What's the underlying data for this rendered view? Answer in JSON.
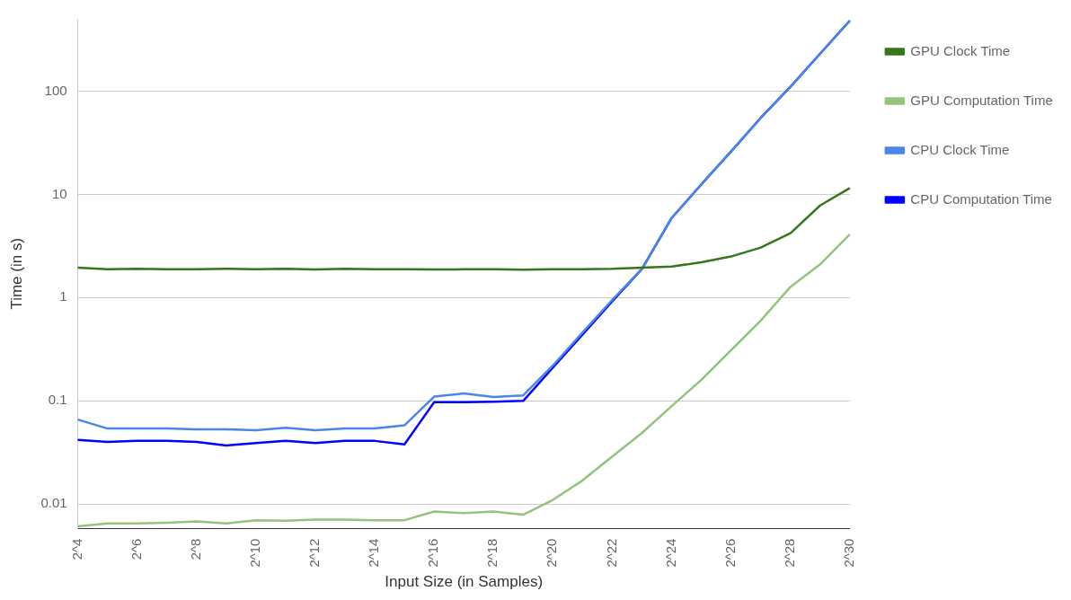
{
  "chart_data": {
    "type": "line",
    "xlabel": "Input Size (in Samples)",
    "ylabel": "Time (in s)",
    "categories": [
      "2^4",
      null,
      "2^6",
      null,
      "2^8",
      null,
      "2^10",
      null,
      "2^12",
      null,
      "2^14",
      null,
      "2^16",
      null,
      "2^18",
      null,
      "2^20",
      null,
      "2^22",
      null,
      "2^24",
      null,
      "2^26",
      null,
      "2^28",
      null,
      "2^30"
    ],
    "series": [
      {
        "name": "GPU Clock Time",
        "color": "#38761d",
        "values": [
          1.95,
          1.88,
          1.9,
          1.88,
          1.88,
          1.9,
          1.88,
          1.9,
          1.87,
          1.9,
          1.88,
          1.88,
          1.87,
          1.88,
          1.88,
          1.86,
          1.88,
          1.88,
          1.9,
          1.95,
          2.0,
          2.2,
          2.5,
          3.05,
          4.2,
          7.8,
          11.5
        ]
      },
      {
        "name": "GPU Computation Time",
        "color": "#93c47d",
        "values": [
          0.0061,
          0.0065,
          0.0065,
          0.0066,
          0.0068,
          0.0065,
          0.007,
          0.0069,
          0.0071,
          0.0071,
          0.007,
          0.007,
          0.0085,
          0.0082,
          0.0085,
          0.0079,
          0.011,
          0.017,
          0.029,
          0.049,
          0.089,
          0.16,
          0.31,
          0.6,
          1.27,
          2.1,
          4.1
        ]
      },
      {
        "name": "CPU Clock Time",
        "color": "#4a86e8",
        "values": [
          0.066,
          0.054,
          0.054,
          0.054,
          0.053,
          0.053,
          0.052,
          0.055,
          0.052,
          0.054,
          0.054,
          0.058,
          0.11,
          0.118,
          0.109,
          0.113,
          0.22,
          0.46,
          0.95,
          1.9,
          5.9,
          12.5,
          26,
          55,
          110,
          230,
          480
        ]
      },
      {
        "name": "CPU Computation Time",
        "color": "#0000ff",
        "values": [
          0.042,
          0.04,
          0.041,
          0.041,
          0.04,
          0.037,
          0.039,
          0.041,
          0.039,
          0.041,
          0.041,
          0.038,
          0.097,
          0.097,
          0.098,
          0.1,
          0.21,
          0.44,
          0.92,
          1.9,
          5.9,
          12.5,
          26,
          55,
          110,
          230,
          480
        ]
      }
    ],
    "log": "y",
    "ylim": [
      0.0058,
      500
    ],
    "yticks": [
      0.01,
      0.1,
      1,
      10,
      100
    ],
    "grid": "y",
    "legend": "right",
    "marker": "none",
    "line_style": "solid"
  }
}
